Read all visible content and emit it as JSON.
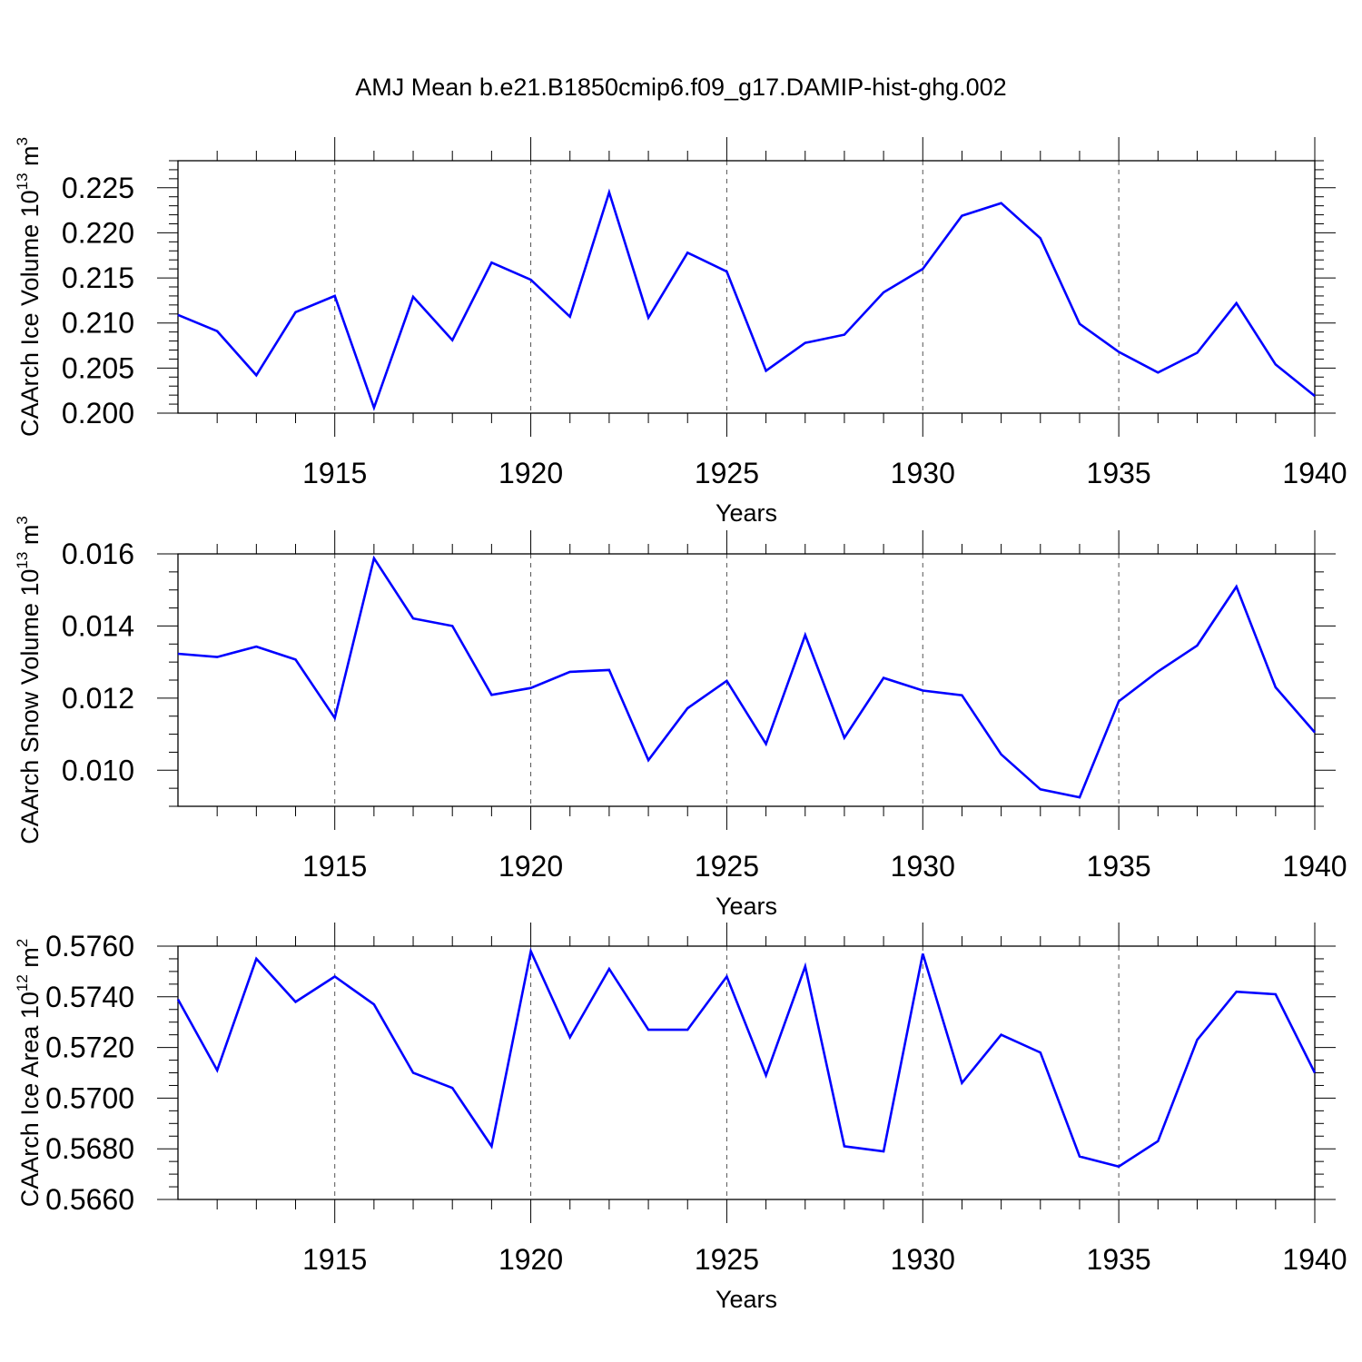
{
  "figure_title": "AMJ Mean b.e21.B1850cmip6.f09_g17.DAMIP-hist-ghg.002",
  "chart_data": [
    {
      "type": "line",
      "title": "AMJ Mean b.e21.B1850cmip6.f09_g17.DAMIP-hist-ghg.002",
      "ylabel": "CAArch Ice Volume 10",
      "ylabel_sup": "13",
      "ylabel_unit": "m",
      "ylabel_unit_sup": "3",
      "xlabel": "Years",
      "xlim": [
        1911,
        1940
      ],
      "ylim": [
        0.2,
        0.228
      ],
      "xticks": [
        1915,
        1920,
        1925,
        1930,
        1935,
        1940
      ],
      "yticks": [
        0.2,
        0.205,
        0.21,
        0.215,
        0.22,
        0.225
      ],
      "ytick_labels": [
        "0.200",
        "0.205",
        "0.210",
        "0.215",
        "0.220",
        "0.225"
      ],
      "y_minor_step": 0.001,
      "grid": "dashed vertical lines at major x ticks",
      "line_color": "#0000ff",
      "x": [
        1911,
        1912,
        1913,
        1914,
        1915,
        1916,
        1917,
        1918,
        1919,
        1920,
        1921,
        1922,
        1923,
        1924,
        1925,
        1926,
        1927,
        1928,
        1929,
        1930,
        1931,
        1932,
        1933,
        1934,
        1935,
        1936,
        1937,
        1938,
        1939,
        1940
      ],
      "y": [
        0.2109,
        0.2091,
        0.2042,
        0.2112,
        0.213,
        0.2006,
        0.2129,
        0.2081,
        0.2167,
        0.2148,
        0.2107,
        0.2245,
        0.2106,
        0.2178,
        0.2157,
        0.2047,
        0.2078,
        0.2087,
        0.2134,
        0.216,
        0.2219,
        0.2233,
        0.2194,
        0.2099,
        0.2068,
        0.2045,
        0.2067,
        0.2122,
        0.2054,
        0.2019
      ]
    },
    {
      "type": "line",
      "ylabel": "CAArch Snow Volume 10",
      "ylabel_sup": "13",
      "ylabel_unit": "m",
      "ylabel_unit_sup": "3",
      "xlabel": "Years",
      "xlim": [
        1911,
        1940
      ],
      "ylim": [
        0.009,
        0.016
      ],
      "xticks": [
        1915,
        1920,
        1925,
        1930,
        1935,
        1940
      ],
      "yticks": [
        0.01,
        0.012,
        0.014,
        0.016
      ],
      "ytick_labels": [
        "0.010",
        "0.012",
        "0.014",
        "0.016"
      ],
      "y_minor_step": 0.0005,
      "grid": "dashed vertical lines at major x ticks",
      "line_color": "#0000ff",
      "x": [
        1911,
        1912,
        1913,
        1914,
        1915,
        1916,
        1917,
        1918,
        1919,
        1920,
        1921,
        1922,
        1923,
        1924,
        1925,
        1926,
        1927,
        1928,
        1929,
        1930,
        1931,
        1932,
        1933,
        1934,
        1935,
        1936,
        1937,
        1938,
        1939,
        1940
      ],
      "y": [
        0.01323,
        0.01314,
        0.01343,
        0.01307,
        0.01145,
        0.01588,
        0.01421,
        0.014,
        0.01209,
        0.01228,
        0.01273,
        0.01278,
        0.01028,
        0.01172,
        0.01248,
        0.01073,
        0.01375,
        0.0109,
        0.01256,
        0.01221,
        0.01208,
        0.01044,
        0.00947,
        0.00925,
        0.01191,
        0.01274,
        0.01346,
        0.01509,
        0.0123,
        0.01105
      ]
    },
    {
      "type": "line",
      "ylabel": "CAArch Ice Area 10",
      "ylabel_sup": "12",
      "ylabel_unit": "m",
      "ylabel_unit_sup": "2",
      "xlabel": "Years",
      "xlim": [
        1911,
        1940
      ],
      "ylim": [
        0.566,
        0.576
      ],
      "xticks": [
        1915,
        1920,
        1925,
        1930,
        1935,
        1940
      ],
      "yticks": [
        0.566,
        0.568,
        0.57,
        0.572,
        0.574,
        0.576
      ],
      "ytick_labels": [
        "0.5660",
        "0.5680",
        "0.5700",
        "0.5720",
        "0.5740",
        "0.5760"
      ],
      "y_minor_step": 0.0005,
      "grid": "dashed vertical lines at major x ticks",
      "line_color": "#0000ff",
      "x": [
        1911,
        1912,
        1913,
        1914,
        1915,
        1916,
        1917,
        1918,
        1919,
        1920,
        1921,
        1922,
        1923,
        1924,
        1925,
        1926,
        1927,
        1928,
        1929,
        1930,
        1931,
        1932,
        1933,
        1934,
        1935,
        1936,
        1937,
        1938,
        1939,
        1940
      ],
      "y": [
        0.5739,
        0.5711,
        0.5755,
        0.5738,
        0.5748,
        0.5737,
        0.571,
        0.5704,
        0.5681,
        0.5758,
        0.5724,
        0.5751,
        0.5727,
        0.5727,
        0.5748,
        0.5709,
        0.5752,
        0.5681,
        0.5679,
        0.5757,
        0.5706,
        0.5725,
        0.5718,
        0.5677,
        0.5673,
        0.5683,
        0.5723,
        0.5742,
        0.5741,
        0.571
      ]
    }
  ]
}
